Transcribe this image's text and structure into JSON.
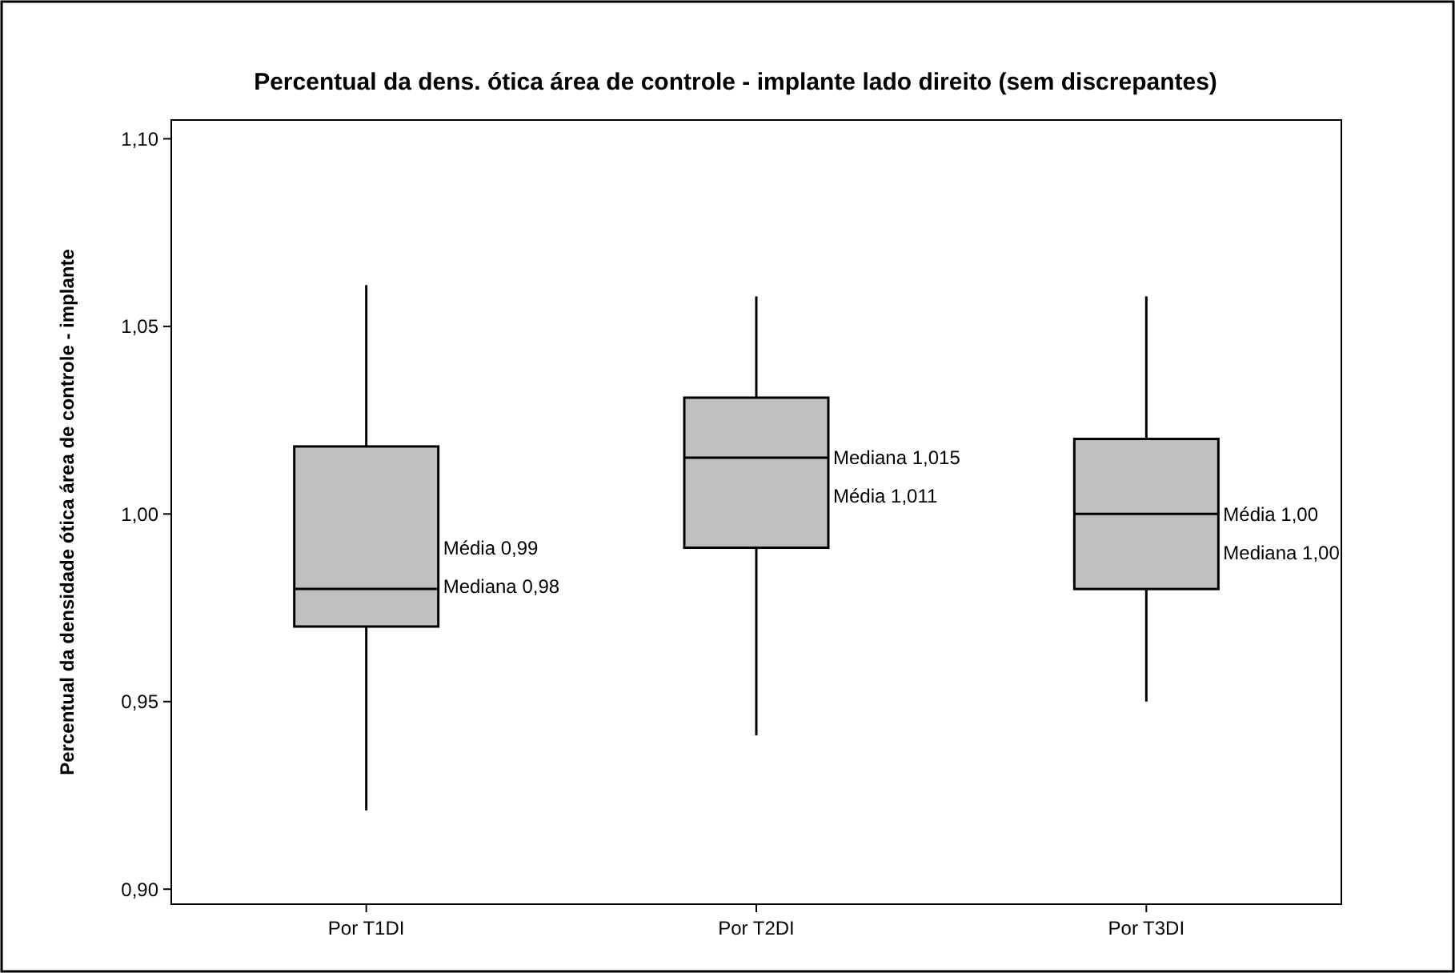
{
  "chart_data": {
    "type": "box",
    "title": "Percentual da dens. ótica área de controle - implante lado direito (sem discrepantes)",
    "ylabel": "Percentual da densidade ótica área de controle - implante",
    "categories": [
      "Por T1DI",
      "Por T2DI",
      "Por T3DI"
    ],
    "boxes": [
      {
        "low": 0.921,
        "q1": 0.97,
        "median": 0.98,
        "q3": 1.018,
        "high": 1.061
      },
      {
        "low": 0.941,
        "q1": 0.991,
        "median": 1.015,
        "q3": 1.031,
        "high": 1.058
      },
      {
        "low": 0.95,
        "q1": 0.98,
        "median": 1.0,
        "q3": 1.02,
        "high": 1.058
      }
    ],
    "color": "#c0c0c0",
    "ylim": [
      0.896,
      1.105
    ],
    "yticks": [
      {
        "value": 0.9,
        "label": "0,90"
      },
      {
        "value": 0.95,
        "label": "0,95"
      },
      {
        "value": 1.0,
        "label": "1,00"
      },
      {
        "value": 1.05,
        "label": "1,05"
      },
      {
        "value": 1.1,
        "label": "1,10"
      }
    ],
    "grid": false,
    "annotations": [
      "Média 0,99",
      "Mediana 0,98",
      "Mediana 1,015",
      "Média 1,011",
      "Média 1,00",
      "Mediana 1,00"
    ]
  }
}
